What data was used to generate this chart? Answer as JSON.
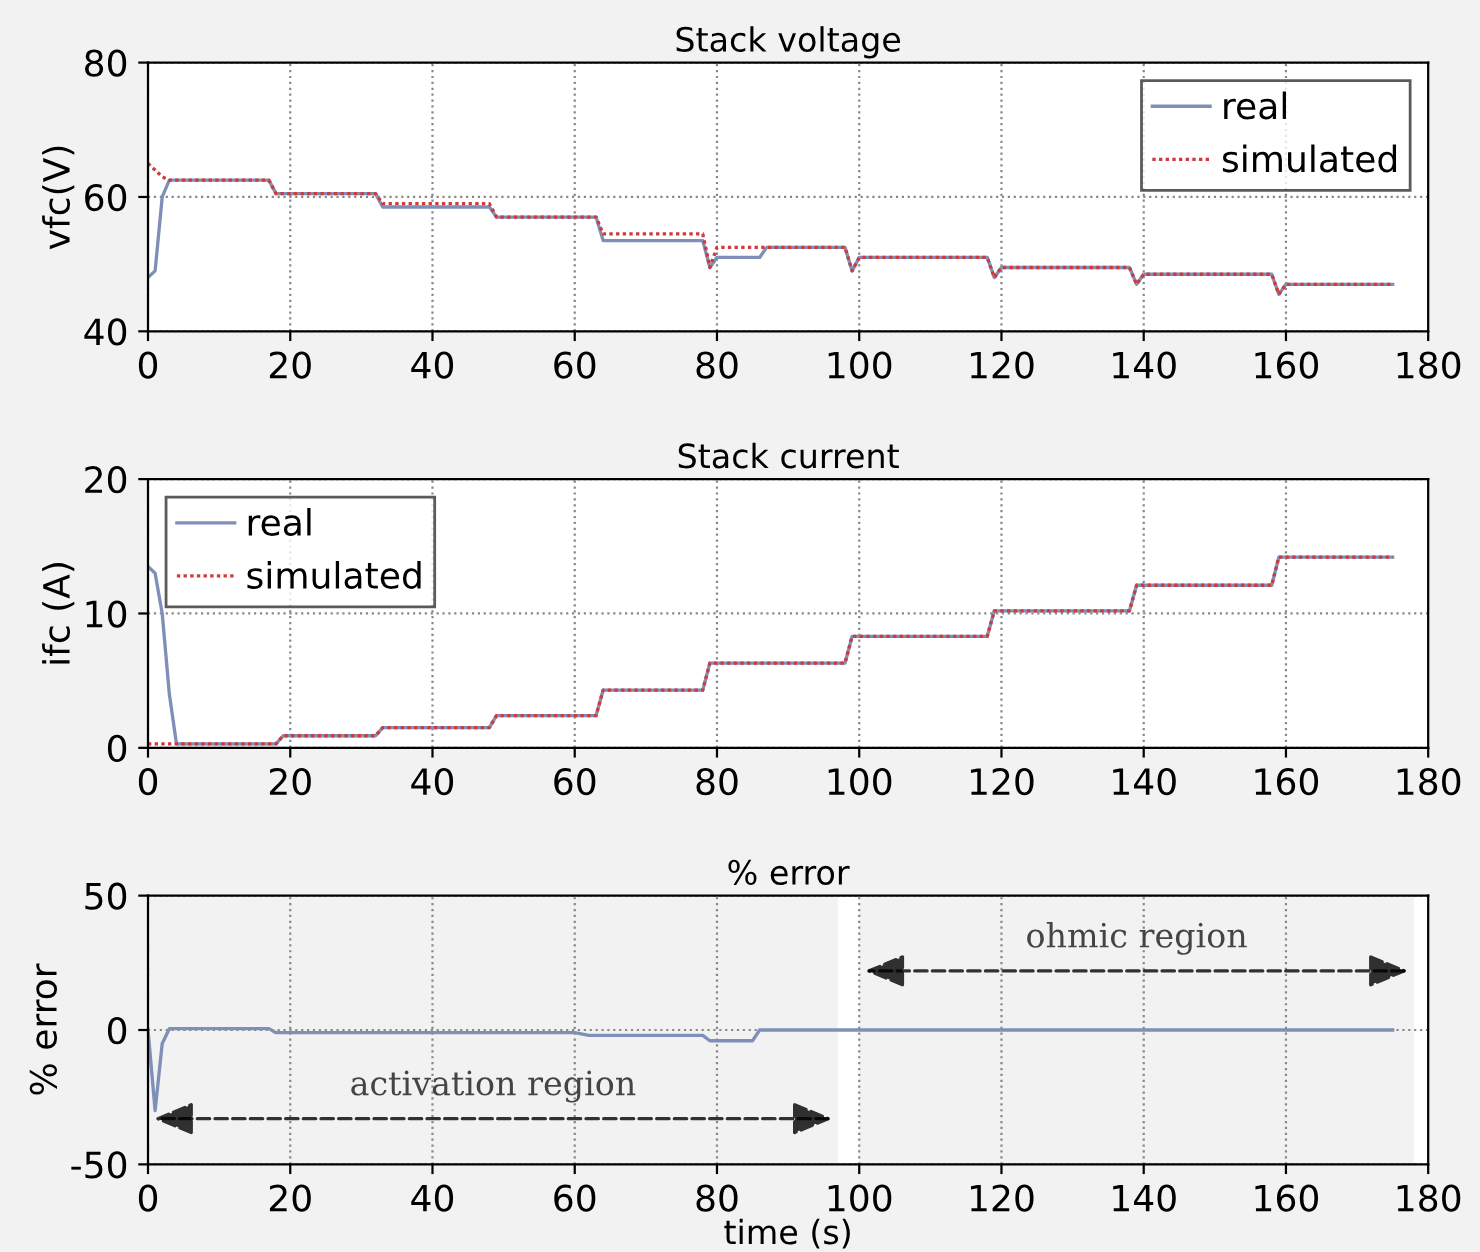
{
  "chart_data": [
    {
      "type": "line",
      "title": "Stack voltage",
      "ylabel": "vfc(V)",
      "xlim": [
        0,
        180
      ],
      "xticks": [
        0,
        20,
        40,
        60,
        80,
        100,
        120,
        140,
        160,
        180
      ],
      "ylim": [
        40,
        80
      ],
      "yticks": [
        40,
        60,
        80
      ],
      "grid": true,
      "legend": "top right",
      "series": [
        {
          "name": "real",
          "color": "#7f8fb8",
          "line_style": "solid",
          "x": [
            0,
            1,
            2,
            3,
            17,
            18,
            32,
            33,
            48,
            49,
            63,
            64,
            78,
            79,
            80,
            86,
            87,
            98,
            99,
            100,
            118,
            119,
            120,
            138,
            139,
            140,
            158,
            159,
            160,
            175
          ],
          "values": [
            48,
            49,
            60,
            62.5,
            62.5,
            60.5,
            60.5,
            58.5,
            58.5,
            57,
            57,
            53.5,
            53.5,
            49.5,
            51,
            51,
            52.5,
            52.5,
            49,
            51,
            51,
            48,
            49.5,
            49.5,
            47,
            48.5,
            48.5,
            45.5,
            47,
            47
          ]
        },
        {
          "name": "simulated",
          "color": "#d03a3a",
          "line_style": "dotted",
          "x": [
            0,
            2,
            3,
            17,
            18,
            32,
            33,
            48,
            49,
            63,
            64,
            78,
            79,
            80,
            98,
            99,
            100,
            118,
            119,
            120,
            138,
            139,
            140,
            158,
            159,
            160,
            175
          ],
          "values": [
            65,
            63,
            62.5,
            62.5,
            60.5,
            60.5,
            59,
            59,
            57,
            57,
            54.5,
            54.5,
            49.5,
            52.5,
            52.5,
            49,
            51,
            51,
            48,
            49.5,
            49.5,
            47,
            48.5,
            48.5,
            45.5,
            47,
            47
          ]
        }
      ]
    },
    {
      "type": "line",
      "title": "Stack current",
      "ylabel": "ifc (A)",
      "xlim": [
        0,
        180
      ],
      "xticks": [
        0,
        20,
        40,
        60,
        80,
        100,
        120,
        140,
        160,
        180
      ],
      "ylim": [
        0,
        20
      ],
      "yticks": [
        0,
        10,
        20
      ],
      "grid": true,
      "legend": "top left",
      "series": [
        {
          "name": "real",
          "color": "#7f8fb8",
          "line_style": "solid",
          "x": [
            0,
            1,
            2,
            3,
            4,
            18,
            19,
            32,
            33,
            48,
            49,
            63,
            64,
            78,
            79,
            98,
            99,
            118,
            119,
            138,
            139,
            158,
            159,
            175
          ],
          "values": [
            13.5,
            13,
            10,
            4,
            0.3,
            0.3,
            0.9,
            0.9,
            1.5,
            1.5,
            2.4,
            2.4,
            4.3,
            4.3,
            6.3,
            6.3,
            8.3,
            8.3,
            10.2,
            10.2,
            12.1,
            12.1,
            14.2,
            14.2
          ]
        },
        {
          "name": "simulated",
          "color": "#d03a3a",
          "line_style": "dotted",
          "x": [
            0,
            18,
            19,
            32,
            33,
            48,
            49,
            63,
            64,
            78,
            79,
            98,
            99,
            118,
            119,
            138,
            139,
            158,
            159,
            175
          ],
          "values": [
            0.3,
            0.3,
            0.9,
            0.9,
            1.5,
            1.5,
            2.4,
            2.4,
            4.3,
            4.3,
            6.3,
            6.3,
            8.3,
            8.3,
            10.2,
            10.2,
            12.1,
            12.1,
            14.2,
            14.2
          ]
        }
      ]
    },
    {
      "type": "line",
      "title": "% error",
      "xlabel": "time (s)",
      "ylabel": "% error",
      "xlim": [
        0,
        180
      ],
      "xticks": [
        0,
        20,
        40,
        60,
        80,
        100,
        120,
        140,
        160,
        180
      ],
      "ylim": [
        -50,
        50
      ],
      "yticks": [
        -50,
        0,
        50
      ],
      "grid": true,
      "series": [
        {
          "color": "#7f8fb8",
          "line_style": "solid",
          "x": [
            0,
            1,
            2,
            3,
            17,
            18,
            60,
            62,
            78,
            79,
            85,
            86,
            175
          ],
          "values": [
            0,
            -30,
            -5,
            0.5,
            0.5,
            -1,
            -1,
            -2,
            -2,
            -4,
            -4,
            0,
            0
          ]
        }
      ],
      "bands": [
        {
          "axis": "x",
          "from": 0,
          "to": 97,
          "label": "activation region",
          "color": "#000000"
        },
        {
          "axis": "x",
          "from": 100,
          "to": 178,
          "label": "ohmic region",
          "color": "#000000"
        }
      ]
    }
  ]
}
